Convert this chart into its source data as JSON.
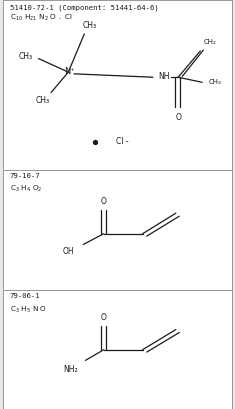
{
  "bg_color": "#e8e8e8",
  "panel_bg": "#ffffff",
  "border_color": "#888888",
  "text_color": "#1a1a1a",
  "line_color": "#1a1a1a",
  "line_width": 0.9,
  "font_size_cas": 5.2,
  "font_size_formula": 5.2,
  "font_size_mol": 5.5,
  "panel0": {
    "cas": "51410-72-1 (Component: 51441-64-6)",
    "formula": "C₁₀ H₂₁ N₂ O . Cl",
    "formula_raw": "C_{10} H_{21} N_2 O . Cl",
    "bullet_text": "Cl -",
    "yrange": [
      0.585,
      1.0
    ]
  },
  "panel1": {
    "cas": "79-10-7",
    "formula": "C₃ H₄ O₂",
    "formula_raw": "C_3 H_4 O_2",
    "yrange": [
      0.29,
      0.585
    ]
  },
  "panel2": {
    "cas": "79-06-1",
    "formula": "C₃ H₅ N O",
    "formula_raw": "C_3 H_5 N O",
    "yrange": [
      0.0,
      0.29
    ]
  }
}
